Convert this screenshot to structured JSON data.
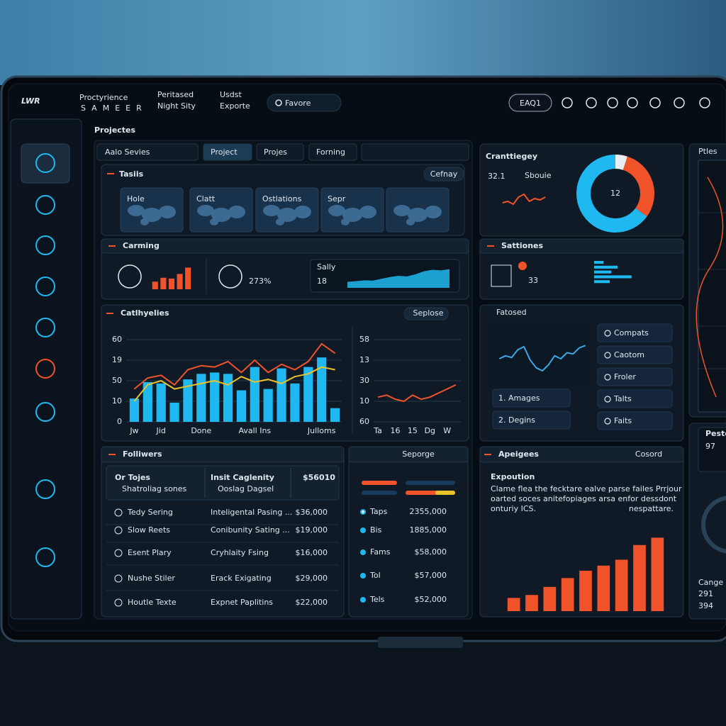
{
  "header": {
    "logo": "LWR",
    "brand": "Proctyrience",
    "brand_sub": "SAMEER",
    "location_caption": "Peritased",
    "location": "Night Sity",
    "menu_caption": "Usdst",
    "menu": "Exporte",
    "search": "Favore",
    "button": "EAQ1"
  },
  "projects": {
    "title": "Projectes",
    "search": "Aalo Sevies",
    "tabs": [
      "Project",
      "Projes",
      "Forning"
    ]
  },
  "tasks": {
    "title": "Tasiis",
    "button": "Cefnay",
    "tiles": [
      "Hole",
      "Clatt",
      "Ostlations",
      "Sepr"
    ]
  },
  "carming": {
    "title": "Carming",
    "percent": "273%",
    "caption": "Sally",
    "number": "18"
  },
  "activity": {
    "title": "Catlhyelies",
    "button": "Seplose",
    "axis_labels": [
      "60",
      "19",
      "50",
      "10",
      "0"
    ],
    "mini_axis_labels": [
      "58",
      "13",
      "30",
      "10",
      "60"
    ]
  },
  "strategy": {
    "title": "Cranttiegey",
    "value": "32.1",
    "caption": "Sbouie"
  },
  "stations": {
    "title": "Sattiones",
    "value": "33"
  },
  "features": {
    "caption": "Fatosed",
    "items": [
      "1. Amages",
      "2. Degins"
    ],
    "buttons": [
      "Compats",
      "Caotom",
      "Froler",
      "Talts",
      "Faits"
    ]
  },
  "followers": {
    "title": "Folliwers",
    "header": [
      [
        "Or Tojes",
        "Shatroliag sones"
      ],
      [
        "Insit Caglenity",
        "Ooslag Dagsel"
      ],
      [
        "$56010"
      ]
    ],
    "rows": [
      [
        "Tedy Sering",
        "Inteligental Pasing ...",
        "$36,000"
      ],
      [
        "Slow Reets",
        "Conibunity Sating ...",
        "$19,000"
      ],
      [
        "Esent Plary",
        "Cryhlaity Fsing",
        "$16,000"
      ],
      [
        "Nushe Stiler",
        "Erack Exigating",
        "$29,000"
      ],
      [
        "Houtle Texte",
        "Expnet Paplitins",
        "$22,000"
      ]
    ]
  },
  "expenses": {
    "title": "Seporge",
    "rows": [
      [
        "Taps",
        "2355,000"
      ],
      [
        "Bis",
        "1885,000"
      ],
      [
        "Fams",
        "$58,000"
      ],
      [
        "Tol",
        "$57,000"
      ],
      [
        "Tels",
        "$52,000"
      ]
    ]
  },
  "apeigees": {
    "title": "Apeigees",
    "button": "Cosord",
    "heading": "Expoution",
    "lines": [
      "Clame flea the fecktare ealve parse failes Prrjour",
      "oarted soces anitefopiages arsa enfor dessdont",
      "onturiy ICS.",
      "nespattare."
    ]
  },
  "side": {
    "top": "Ptles",
    "title": "Peste",
    "value": "97",
    "caption": "Cange",
    "rows": [
      "291",
      "394"
    ]
  },
  "chart_data": [
    {
      "type": "bar",
      "categories": [
        "Jw",
        null,
        "Jid",
        null,
        null,
        "Done",
        null,
        null,
        null,
        "Avall Ins",
        null,
        null,
        null,
        null,
        "Julloms",
        null
      ],
      "values": [
        17,
        29,
        28,
        14,
        31,
        35,
        36,
        35,
        23,
        40,
        24,
        39,
        28,
        40,
        47,
        10
      ],
      "color": "#1fb8f0",
      "lines": [
        {
          "color": "#f0532a",
          "values": [
            24,
            32,
            34,
            27,
            38,
            41,
            40,
            44,
            36,
            45,
            36,
            42,
            38,
            44,
            57,
            50
          ]
        },
        {
          "color": "#e8c32a",
          "values": [
            15,
            27,
            30,
            24,
            26,
            28,
            30,
            27,
            33,
            29,
            31,
            28,
            33,
            35,
            40,
            38
          ]
        }
      ],
      "ylim": [
        0,
        60
      ]
    },
    {
      "type": "line",
      "categories": [
        "Ta",
        null,
        "16",
        null,
        "15",
        null,
        "Dg",
        null,
        "W",
        null
      ],
      "values": [
        12,
        13,
        11,
        10,
        13,
        11,
        12,
        14,
        16,
        18
      ],
      "color": "#f0532a",
      "ylim": [
        0,
        40
      ]
    },
    {
      "type": "donut",
      "center_label": 12,
      "values": [
        5,
        30,
        65
      ],
      "colors": [
        "#e9eef2",
        "#f0532a",
        "#1fb8f0"
      ]
    },
    {
      "type": "line",
      "values": [
        8,
        9,
        7,
        12,
        14,
        9,
        11,
        10,
        12
      ],
      "color": "#f0532a",
      "ylim": [
        0,
        20
      ]
    },
    {
      "type": "bar",
      "values": [
        30,
        45,
        42,
        60,
        85
      ],
      "color": "#f0532a",
      "ylim": [
        0,
        100
      ]
    },
    {
      "type": "area",
      "values": [
        20,
        22,
        25,
        24,
        30,
        36,
        40,
        38,
        45,
        55,
        60,
        58,
        62
      ],
      "color": "#1fb8f0",
      "ylim": [
        0,
        80
      ]
    },
    {
      "type": "hbar",
      "values": [
        12,
        30,
        22,
        48,
        20
      ],
      "color": "#1fb8f0",
      "xlim": [
        0,
        100
      ]
    },
    {
      "type": "line",
      "values": [
        40,
        45,
        42,
        55,
        60,
        38,
        25,
        20,
        30,
        45,
        40,
        50,
        48,
        58,
        62
      ],
      "color": "#3aa7e6",
      "ylim": [
        0,
        100
      ]
    },
    {
      "type": "bar",
      "values": [
        18,
        22,
        33,
        45,
        55,
        62,
        70,
        90,
        100
      ],
      "color": "#f0532a",
      "ylim": [
        0,
        110
      ]
    }
  ]
}
